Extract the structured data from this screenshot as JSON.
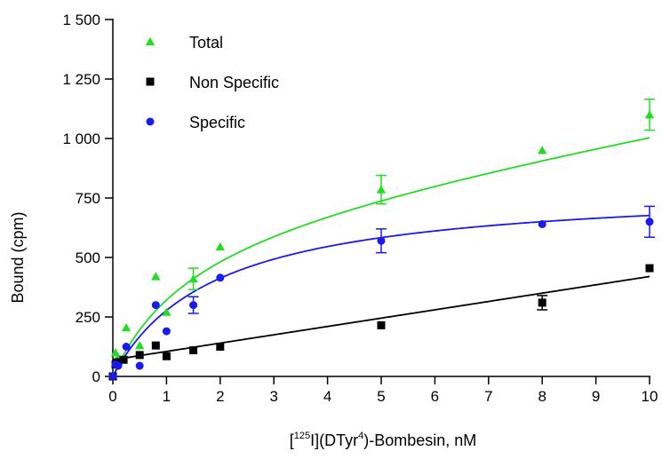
{
  "chart_data": {
    "type": "scatter",
    "xlabel": {
      "pre": "[",
      "sup1": "125",
      "mid": "I](DTyr",
      "sup2": "4",
      "post": ")-Bombesin, nM"
    },
    "ylabel": "Bound (cpm)",
    "xlim": [
      0,
      10
    ],
    "ylim": [
      0,
      1500
    ],
    "x_ticks": [
      0,
      1,
      2,
      3,
      4,
      5,
      6,
      7,
      8,
      9,
      10
    ],
    "y_ticks": [
      0,
      250,
      500,
      750,
      1000,
      1250,
      1500
    ],
    "y_tick_labels": [
      "0",
      "250",
      "500",
      "750",
      "1 000",
      "1 250",
      "1 500"
    ],
    "grid": false,
    "legend_position": "top-left",
    "series": [
      {
        "name": "Total",
        "color": "#22dd22",
        "marker": "triangle",
        "points": [
          {
            "x": 0.0,
            "y": 0
          },
          {
            "x": 0.05,
            "y": 100
          },
          {
            "x": 0.1,
            "y": 80
          },
          {
            "x": 0.25,
            "y": 205
          },
          {
            "x": 0.5,
            "y": 130
          },
          {
            "x": 0.8,
            "y": 420
          },
          {
            "x": 1.0,
            "y": 270
          },
          {
            "x": 1.5,
            "y": 410,
            "err": 45
          },
          {
            "x": 2.0,
            "y": 545
          },
          {
            "x": 5.0,
            "y": 785,
            "err": 60
          },
          {
            "x": 8.0,
            "y": 950
          },
          {
            "x": 10.0,
            "y": 1100,
            "err": 65
          }
        ],
        "fit": {
          "model": "total",
          "bmax": 705,
          "kd": 1.5,
          "ns": 39
        }
      },
      {
        "name": "Non Specific",
        "color": "#000000",
        "marker": "square",
        "points": [
          {
            "x": 0.0,
            "y": 0
          },
          {
            "x": 0.05,
            "y": 50
          },
          {
            "x": 0.1,
            "y": 60
          },
          {
            "x": 0.2,
            "y": 70
          },
          {
            "x": 0.5,
            "y": 90
          },
          {
            "x": 0.8,
            "y": 130
          },
          {
            "x": 1.0,
            "y": 85
          },
          {
            "x": 1.5,
            "y": 110
          },
          {
            "x": 2.0,
            "y": 125
          },
          {
            "x": 5.0,
            "y": 215
          },
          {
            "x": 8.0,
            "y": 310,
            "err": 30
          },
          {
            "x": 10.0,
            "y": 455
          }
        ],
        "fit": {
          "model": "linear",
          "slope": 35,
          "intercept": 70
        }
      },
      {
        "name": "Specific",
        "color": "#1a1aee",
        "marker": "circle",
        "points": [
          {
            "x": 0.0,
            "y": 0
          },
          {
            "x": 0.05,
            "y": 50
          },
          {
            "x": 0.1,
            "y": 45
          },
          {
            "x": 0.25,
            "y": 125
          },
          {
            "x": 0.5,
            "y": 45
          },
          {
            "x": 0.8,
            "y": 300
          },
          {
            "x": 1.0,
            "y": 190
          },
          {
            "x": 1.5,
            "y": 300,
            "err": 35
          },
          {
            "x": 2.0,
            "y": 415
          },
          {
            "x": 5.0,
            "y": 570,
            "err": 50
          },
          {
            "x": 8.0,
            "y": 640
          },
          {
            "x": 10.0,
            "y": 650,
            "err": 65
          }
        ],
        "fit": {
          "model": "hyperbola",
          "bmax": 805,
          "kd": 1.9
        }
      }
    ]
  }
}
